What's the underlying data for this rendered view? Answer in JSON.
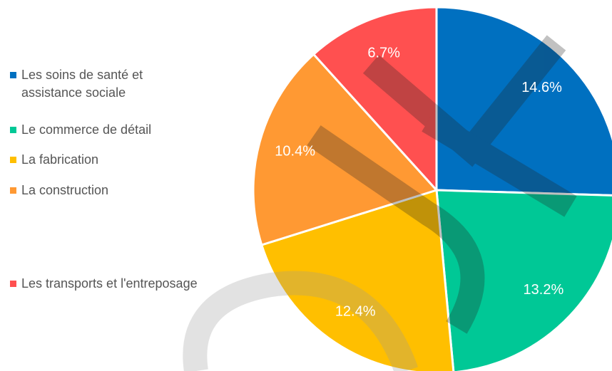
{
  "chart_data": {
    "type": "pie",
    "categories": [
      "Les soins de santé et assistance sociale",
      "Le commerce de détail",
      "La fabrication",
      "La construction",
      "Les transports et l'entreposage"
    ],
    "values": [
      14.6,
      13.2,
      12.4,
      10.4,
      6.7
    ],
    "value_labels": [
      "14.6%",
      "13.2%",
      "12.4%",
      "10.4%",
      "6.7%"
    ],
    "colors": [
      "#0070c0",
      "#00c896",
      "#ffbf00",
      "#ff9933",
      "#ff5050"
    ],
    "legend": "left"
  }
}
